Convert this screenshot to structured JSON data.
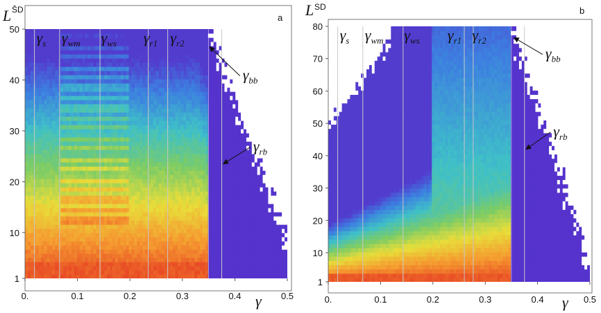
{
  "colors": {
    "deep_blue": "#5533cc",
    "mid_blue": "#3d7fe0",
    "cyan": "#3fc0c8",
    "green": "#7ccc66",
    "yellow": "#e8dd3a",
    "orange": "#f59a30",
    "red": "#e84a25",
    "band_grey": "#c8c8c8"
  },
  "chart_data": [
    {
      "panel": "a",
      "type": "heatmap",
      "xlabel": "γ",
      "ylabel": "L",
      "ylabel_sup": "S̄D",
      "xlim": [
        0,
        0.5
      ],
      "ylim": [
        1,
        50
      ],
      "x_ticks": [
        {
          "v": 0,
          "label": "0."
        },
        {
          "v": 0.1,
          "label": "0.1"
        },
        {
          "v": 0.2,
          "label": "0.2"
        },
        {
          "v": 0.3,
          "label": "0.3"
        },
        {
          "v": 0.4,
          "label": "0.4"
        },
        {
          "v": 0.5,
          "label": "0.5"
        }
      ],
      "y_ticks": [
        {
          "v": 1,
          "label": "1"
        },
        {
          "v": 10,
          "label": "10"
        },
        {
          "v": 20,
          "label": "20"
        },
        {
          "v": 30,
          "label": "30"
        },
        {
          "v": 40,
          "label": "40"
        },
        {
          "v": 50,
          "label": "50"
        }
      ],
      "gamma_lines": [
        0.018,
        0.066,
        0.143,
        0.235,
        0.272,
        0.375
      ],
      "gamma_bb": 0.35,
      "gamma_labels": [
        {
          "main": "γ",
          "sub": "s",
          "x": 0.022
        },
        {
          "main": "γ",
          "sub": "wm",
          "x": 0.07
        },
        {
          "main": "γ",
          "sub": "ws",
          "x": 0.145
        },
        {
          "main": "γ",
          "sub": "r1",
          "x": 0.226
        },
        {
          "main": "γ",
          "sub": "r2",
          "x": 0.277
        }
      ],
      "annotations": [
        {
          "main": "γ",
          "sub": "bb",
          "text_x": 0.415,
          "text_y": 40,
          "arrow_to_x": 0.352,
          "arrow_to_y": 46.5
        },
        {
          "main": "γ",
          "sub": "rb",
          "text_x": 0.435,
          "text_y": 26,
          "arrow_to_x": 0.378,
          "arrow_to_y": 23.5
        }
      ]
    },
    {
      "panel": "b",
      "type": "heatmap",
      "xlabel": "γ",
      "ylabel": "L",
      "ylabel_sup": "SD",
      "xlim": [
        0,
        0.5
      ],
      "ylim": [
        1,
        80
      ],
      "x_ticks": [
        {
          "v": 0,
          "label": "0."
        },
        {
          "v": 0.1,
          "label": "0.1"
        },
        {
          "v": 0.2,
          "label": "0.2"
        },
        {
          "v": 0.3,
          "label": "0.3"
        },
        {
          "v": 0.4,
          "label": "0.4"
        },
        {
          "v": 0.5,
          "label": "0.5"
        }
      ],
      "y_ticks": [
        {
          "v": 1,
          "label": "1"
        },
        {
          "v": 10,
          "label": "10"
        },
        {
          "v": 20,
          "label": "20"
        },
        {
          "v": 30,
          "label": "30"
        },
        {
          "v": 40,
          "label": "40"
        },
        {
          "v": 50,
          "label": "50"
        },
        {
          "v": 60,
          "label": "60"
        },
        {
          "v": 70,
          "label": "70"
        },
        {
          "v": 80,
          "label": "80"
        }
      ],
      "gamma_lines": [
        0.018,
        0.066,
        0.143,
        0.26,
        0.277,
        0.375
      ],
      "gamma_bb": 0.35,
      "gamma_labels": [
        {
          "main": "γ",
          "sub": "s",
          "x": 0.022
        },
        {
          "main": "γ",
          "sub": "wm",
          "x": 0.07
        },
        {
          "main": "γ",
          "sub": "ws",
          "x": 0.145
        },
        {
          "main": "γ",
          "sub": "r1",
          "x": 0.228
        },
        {
          "main": "γ",
          "sub": "r2",
          "x": 0.275
        }
      ],
      "annotations": [
        {
          "main": "γ",
          "sub": "bb",
          "text_x": 0.415,
          "text_y": 70,
          "arrow_to_x": 0.355,
          "arrow_to_y": 76.5
        },
        {
          "main": "γ",
          "sub": "rb",
          "text_x": 0.43,
          "text_y": 46,
          "arrow_to_x": 0.378,
          "arrow_to_y": 42
        }
      ]
    }
  ]
}
